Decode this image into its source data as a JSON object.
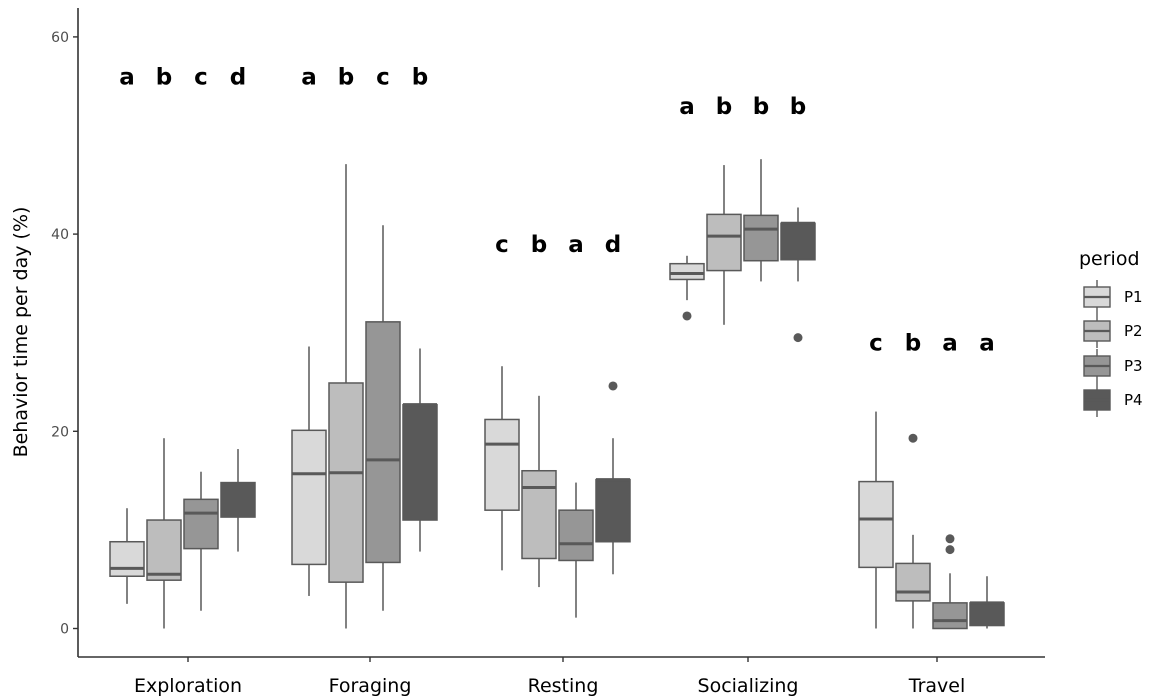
{
  "chart_data": {
    "type": "boxplot",
    "ylabel": "Behavior time per day (%)",
    "xlabel": "",
    "ylim": [
      -3,
      63
    ],
    "yticks": [
      0,
      20,
      40,
      60
    ],
    "grid": false,
    "legend": {
      "title": "period",
      "placement": "right",
      "entries": [
        "P1",
        "P2",
        "P3",
        "P4"
      ]
    },
    "colors": {
      "P1": "#d9d9d9",
      "P2": "#bdbdbd",
      "P3": "#969696",
      "P4": "#595959",
      "stroke": "#595959"
    },
    "categories": [
      {
        "name": "Exploration",
        "letters": [
          "a",
          "b",
          "c",
          "d"
        ],
        "letters_y": 56,
        "boxes": [
          {
            "period": "P1",
            "min": 2.5,
            "q1": 5.3,
            "median": 6.1,
            "q3": 8.8,
            "max": 12.2,
            "outliers": []
          },
          {
            "period": "P2",
            "min": 0.0,
            "q1": 4.9,
            "median": 5.5,
            "q3": 11.0,
            "max": 19.3,
            "outliers": []
          },
          {
            "period": "P3",
            "min": 1.8,
            "q1": 8.1,
            "median": 11.7,
            "q3": 13.1,
            "max": 15.9,
            "outliers": []
          },
          {
            "period": "P4",
            "min": 7.8,
            "q1": 11.3,
            "median": 14.6,
            "q3": 14.8,
            "max": 18.2,
            "outliers": []
          }
        ]
      },
      {
        "name": "Foraging",
        "letters": [
          "a",
          "b",
          "c",
          "b"
        ],
        "letters_y": 56,
        "boxes": [
          {
            "period": "P1",
            "min": 3.3,
            "q1": 6.5,
            "median": 15.7,
            "q3": 20.1,
            "max": 28.6,
            "outliers": []
          },
          {
            "period": "P2",
            "min": 0.0,
            "q1": 4.7,
            "median": 15.8,
            "q3": 24.9,
            "max": 47.1,
            "outliers": []
          },
          {
            "period": "P3",
            "min": 1.8,
            "q1": 6.7,
            "median": 17.1,
            "q3": 31.1,
            "max": 40.9,
            "outliers": []
          },
          {
            "period": "P4",
            "min": 7.8,
            "q1": 11.0,
            "median": 22.7,
            "q3": 22.7,
            "max": 28.4,
            "outliers": []
          }
        ]
      },
      {
        "name": "Resting",
        "letters": [
          "c",
          "b",
          "a",
          "d"
        ],
        "letters_y": 39,
        "boxes": [
          {
            "period": "P1",
            "min": 5.9,
            "q1": 12.0,
            "median": 18.7,
            "q3": 21.2,
            "max": 26.6,
            "outliers": []
          },
          {
            "period": "P2",
            "min": 4.2,
            "q1": 7.1,
            "median": 14.3,
            "q3": 16.0,
            "max": 23.6,
            "outliers": []
          },
          {
            "period": "P3",
            "min": 1.1,
            "q1": 6.9,
            "median": 8.6,
            "q3": 12.0,
            "max": 14.8,
            "outliers": []
          },
          {
            "period": "P4",
            "min": 5.5,
            "q1": 8.8,
            "median": 15.1,
            "q3": 15.1,
            "max": 19.3,
            "outliers": [
              24.6
            ]
          }
        ]
      },
      {
        "name": "Socializing",
        "letters": [
          "a",
          "b",
          "b",
          "b"
        ],
        "letters_y": 53,
        "boxes": [
          {
            "period": "P1",
            "min": 33.3,
            "q1": 35.4,
            "median": 36.0,
            "q3": 37.0,
            "max": 37.8,
            "outliers": [
              31.7
            ]
          },
          {
            "period": "P2",
            "min": 30.8,
            "q1": 36.3,
            "median": 39.8,
            "q3": 42.0,
            "max": 47.0,
            "outliers": []
          },
          {
            "period": "P3",
            "min": 35.2,
            "q1": 37.3,
            "median": 40.5,
            "q3": 41.9,
            "max": 47.6,
            "outliers": []
          },
          {
            "period": "P4",
            "min": 35.2,
            "q1": 37.4,
            "median": 41.1,
            "q3": 41.1,
            "max": 42.7,
            "outliers": [
              29.5
            ]
          }
        ]
      },
      {
        "name": "Travel",
        "letters": [
          "c",
          "b",
          "a",
          "a"
        ],
        "letters_y": 29,
        "boxes": [
          {
            "period": "P1",
            "min": 0.0,
            "q1": 6.2,
            "median": 11.1,
            "q3": 14.9,
            "max": 22.0,
            "outliers": []
          },
          {
            "period": "P2",
            "min": 0.0,
            "q1": 2.8,
            "median": 3.7,
            "q3": 6.6,
            "max": 9.5,
            "outliers": [
              19.3
            ]
          },
          {
            "period": "P3",
            "min": 0.0,
            "q1": 0.0,
            "median": 0.8,
            "q3": 2.6,
            "max": 5.6,
            "outliers": [
              8.0,
              9.1
            ]
          },
          {
            "period": "P4",
            "min": 0.0,
            "q1": 0.3,
            "median": 2.6,
            "q3": 2.6,
            "max": 5.3,
            "outliers": []
          }
        ]
      }
    ]
  }
}
